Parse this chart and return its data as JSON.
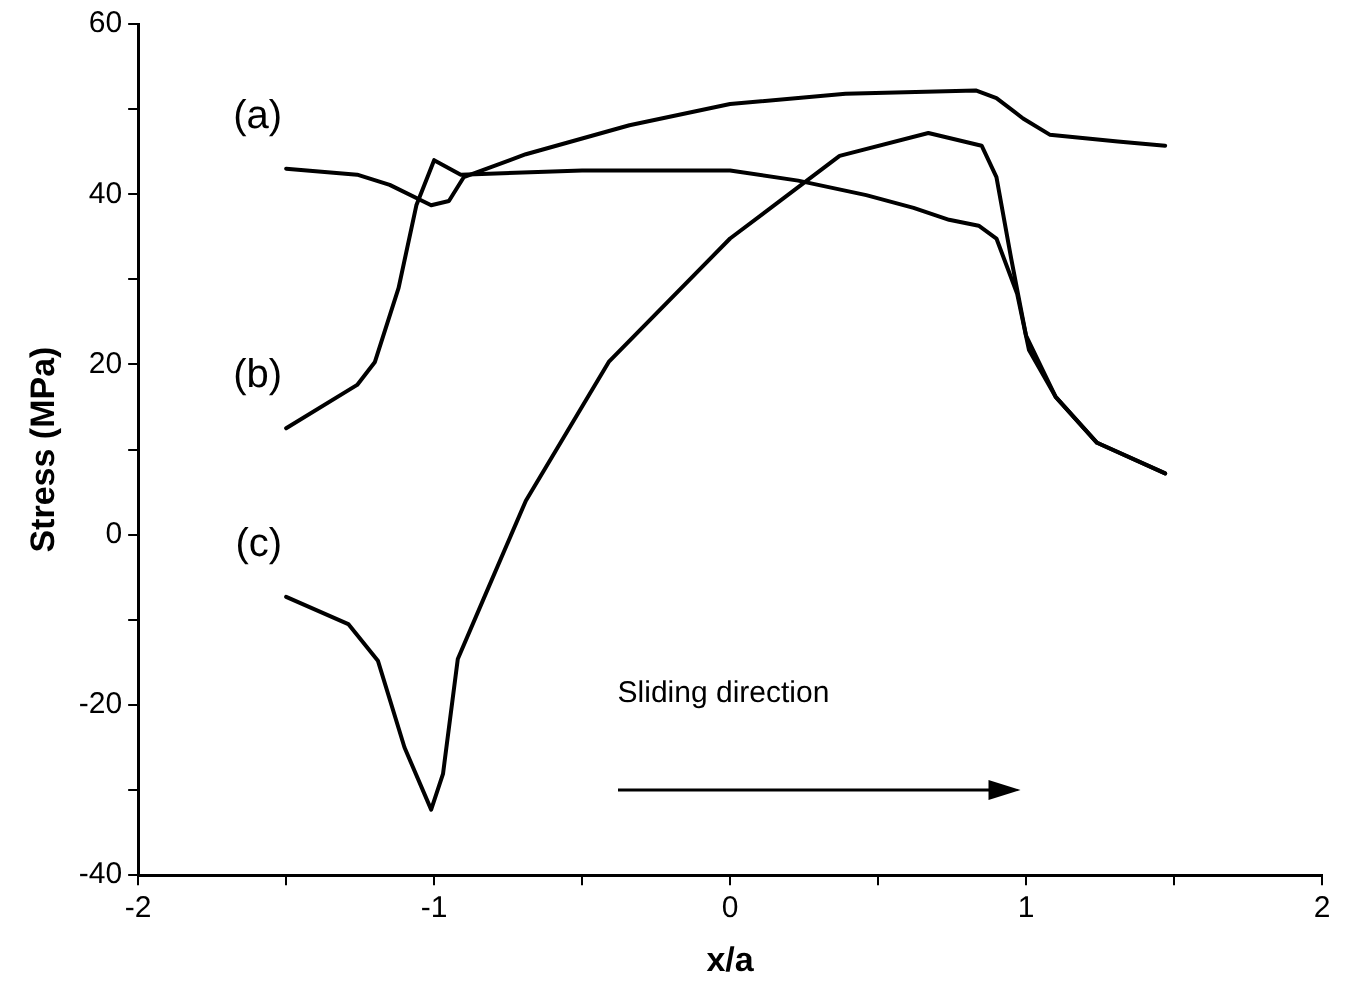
{
  "chart_data": {
    "type": "line",
    "xlabel": "x/a",
    "ylabel": "Stress (MPa)",
    "xlim": [
      -2,
      2
    ],
    "ylim": [
      -40,
      60
    ],
    "xticks": [
      -2,
      {
        "value": -1.5,
        "label": null
      },
      -1,
      {
        "value": -0.5,
        "label": null
      },
      0,
      {
        "value": 0.5,
        "label": null
      },
      1,
      {
        "value": 1.5,
        "label": null
      },
      2
    ],
    "yticks": [
      -40,
      {
        "value": -30,
        "label": null
      },
      -20,
      {
        "value": -10,
        "label": null
      },
      0,
      {
        "value": 10,
        "label": null
      },
      20,
      {
        "value": 30,
        "label": null
      },
      40,
      {
        "value": 50,
        "label": null
      },
      60
    ],
    "annotations": [
      "Sliding direction"
    ],
    "series": [
      {
        "name": "(a)",
        "color": "#000000",
        "x": [
          -1.5,
          -1.26,
          -1.15,
          -1.01,
          -0.95,
          -0.9,
          -0.69,
          -0.34,
          0,
          0.39,
          0.83,
          0.9,
          0.99,
          1.08,
          1.31,
          1.47
        ],
        "values": [
          43,
          42.3,
          41.1,
          38.7,
          39.2,
          42,
          44.7,
          48.1,
          50.6,
          51.8,
          52.2,
          51.3,
          48.9,
          47,
          46.2,
          45.7
        ]
      },
      {
        "name": "(b)",
        "color": "#000000",
        "x": [
          -1.5,
          -1.26,
          -1.2,
          -1.12,
          -1.06,
          -1,
          -0.91,
          -0.5,
          0,
          0.23,
          0.46,
          0.62,
          0.74,
          0.84,
          0.9,
          0.97,
          1.01,
          1.1,
          1.24,
          1.47
        ],
        "values": [
          12.5,
          17.6,
          20.3,
          29,
          38.7,
          44,
          42.3,
          42.8,
          42.8,
          41.6,
          39.9,
          38.4,
          37,
          36.3,
          34.8,
          28.3,
          21.7,
          16.2,
          10.8,
          7.2
        ]
      },
      {
        "name": "(c)",
        "color": "#000000",
        "x": [
          -1.5,
          -1.29,
          -1.19,
          -1.1,
          -1.01,
          -0.97,
          -0.92,
          -0.83,
          -0.69,
          -0.41,
          0,
          0.37,
          0.67,
          0.85,
          0.9,
          0.95,
          1,
          1.1,
          1.24,
          1.47
        ],
        "values": [
          -7.3,
          -10.5,
          -14.8,
          -25,
          -32.3,
          -28.1,
          -14.6,
          -7.3,
          4,
          20.3,
          34.8,
          44.5,
          47.2,
          45.7,
          42,
          32.4,
          23.4,
          16.2,
          10.8,
          7.2
        ]
      }
    ]
  }
}
